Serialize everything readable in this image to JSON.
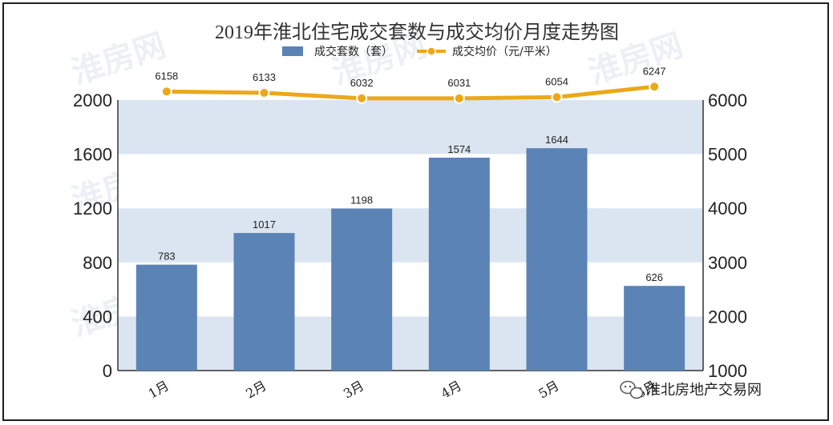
{
  "watermark_text": "淮房网",
  "brand": {
    "label": "淮北房地产交易网",
    "icon": "wechat-icon"
  },
  "chart_data": {
    "type": "bar",
    "title": "2019年淮北住宅成交套数与成交均价月度走势图",
    "categories": [
      "1月",
      "2月",
      "3月",
      "4月",
      "5月",
      "6月"
    ],
    "series": [
      {
        "name": "成交套数（套）",
        "type": "bar",
        "axis": "left",
        "color": "#5b83b5",
        "values": [
          783,
          1017,
          1198,
          1574,
          1644,
          626
        ]
      },
      {
        "name": "成交均价（元/平米）",
        "type": "line",
        "axis": "right",
        "color": "#eba818",
        "values": [
          6158,
          6133,
          6032,
          6031,
          6054,
          6247
        ]
      }
    ],
    "y_left": {
      "min": 0,
      "max": 2000,
      "ticks": [
        0,
        400,
        800,
        1200,
        1600,
        2000
      ]
    },
    "y_right": {
      "min": 1000,
      "max": 6000,
      "ticks": [
        1000,
        2000,
        3000,
        4000,
        5000,
        6000
      ]
    },
    "legend_position": "top-center",
    "grid": "alternating horizontal bands",
    "colors": {
      "band": "#dbe5f1",
      "bar": "#5b83b5",
      "line": "#eba818"
    }
  }
}
